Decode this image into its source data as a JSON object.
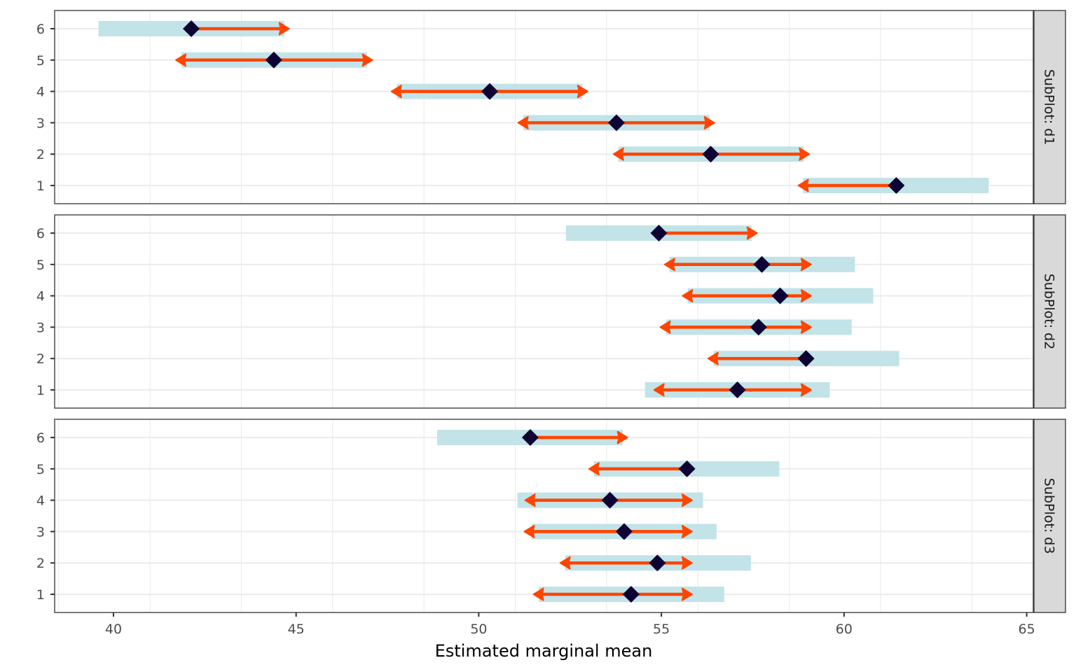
{
  "chart_data": {
    "type": "interval",
    "xlabel": "Estimated marginal mean",
    "xlim": [
      38.39,
      65.18
    ],
    "x_ticks": [
      40,
      45,
      50,
      55,
      60,
      65
    ],
    "x_tick_labels": [
      "40",
      "45",
      "50",
      "55",
      "60",
      "65"
    ],
    "y_categories": [
      "1",
      "2",
      "3",
      "4",
      "5",
      "6"
    ],
    "grid": true,
    "colors": {
      "bar": "#c2e3e8",
      "arrow": "#ff4500",
      "point": "#0f0033",
      "strip_bg": "#d9d9d9",
      "grid": "#ebebeb"
    },
    "panels": [
      {
        "strip": "SubPlot: d1",
        "rows": [
          {
            "y": "1",
            "estimate": 61.43,
            "bar_low": 58.88,
            "bar_high": 63.96,
            "arrow_low": 58.75,
            "arrow_high": null
          },
          {
            "y": "2",
            "estimate": 56.35,
            "bar_low": 53.82,
            "bar_high": 58.9,
            "arrow_low": 53.69,
            "arrow_high": 59.05
          },
          {
            "y": "3",
            "estimate": 53.77,
            "bar_low": 51.22,
            "bar_high": 56.32,
            "arrow_low": 51.08,
            "arrow_high": 56.45
          },
          {
            "y": "4",
            "estimate": 50.3,
            "bar_low": 47.76,
            "bar_high": 52.84,
            "arrow_low": 47.61,
            "arrow_high": 52.98
          },
          {
            "y": "5",
            "estimate": 44.39,
            "bar_low": 41.86,
            "bar_high": 46.94,
            "arrow_low": 41.71,
            "arrow_high": 47.09
          },
          {
            "y": "6",
            "estimate": 42.13,
            "bar_low": 39.59,
            "bar_high": 44.68,
            "arrow_low": null,
            "arrow_high": 44.81
          }
        ]
      },
      {
        "strip": "SubPlot: d2",
        "rows": [
          {
            "y": "1",
            "estimate": 57.08,
            "bar_low": 54.55,
            "bar_high": 59.61,
            "arrow_low": 54.8,
            "arrow_high": 59.1
          },
          {
            "y": "2",
            "estimate": 58.96,
            "bar_low": 56.43,
            "bar_high": 61.51,
            "arrow_low": 56.28,
            "arrow_high": null
          },
          {
            "y": "3",
            "estimate": 57.66,
            "bar_low": 55.13,
            "bar_high": 60.21,
            "arrow_low": 54.97,
            "arrow_high": 59.1
          },
          {
            "y": "4",
            "estimate": 58.25,
            "bar_low": 55.72,
            "bar_high": 60.8,
            "arrow_low": 55.58,
            "arrow_high": 59.1
          },
          {
            "y": "5",
            "estimate": 57.75,
            "bar_low": 55.22,
            "bar_high": 60.3,
            "arrow_low": 55.09,
            "arrow_high": 59.1
          },
          {
            "y": "6",
            "estimate": 54.93,
            "bar_low": 52.39,
            "bar_high": 57.47,
            "arrow_low": null,
            "arrow_high": 57.62
          }
        ]
      },
      {
        "strip": "SubPlot: d3",
        "rows": [
          {
            "y": "1",
            "estimate": 54.17,
            "bar_low": 51.64,
            "bar_high": 56.72,
            "arrow_low": 51.5,
            "arrow_high": 55.84
          },
          {
            "y": "2",
            "estimate": 54.89,
            "bar_low": 52.37,
            "bar_high": 57.45,
            "arrow_low": 52.23,
            "arrow_high": 55.84
          },
          {
            "y": "3",
            "estimate": 53.98,
            "bar_low": 51.45,
            "bar_high": 56.51,
            "arrow_low": 51.25,
            "arrow_high": 55.84
          },
          {
            "y": "4",
            "estimate": 53.59,
            "bar_low": 51.06,
            "bar_high": 56.14,
            "arrow_low": 51.27,
            "arrow_high": 55.84
          },
          {
            "y": "5",
            "estimate": 55.7,
            "bar_low": 53.15,
            "bar_high": 58.23,
            "arrow_low": 53.02,
            "arrow_high": null
          },
          {
            "y": "6",
            "estimate": 51.41,
            "bar_low": 48.86,
            "bar_high": 53.94,
            "arrow_low": null,
            "arrow_high": 54.07
          }
        ]
      }
    ]
  }
}
